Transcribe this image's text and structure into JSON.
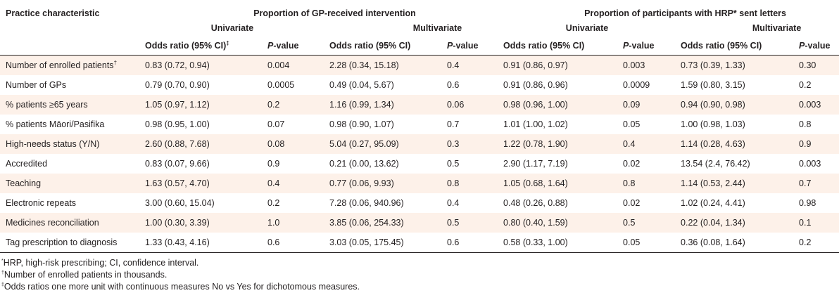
{
  "header": {
    "practice_characteristic": "Practice characteristic",
    "group1": "Proportion of GP-received intervention",
    "group2": "Proportion of participants with HRP* sent letters",
    "univariate": "Univariate",
    "multivariate": "Multivariate",
    "or_label": "Odds ratio (95% CI)",
    "or_dagger": "‡",
    "p_label_italic": "P",
    "p_label_rest": "-value"
  },
  "rows": [
    {
      "label": "Number of enrolled patients",
      "sup": "†",
      "gp_uni_or": "0.83 (0.72, 0.94)",
      "gp_uni_p": "0.004",
      "gp_multi_or": "2.28 (0.34, 15.18)",
      "gp_multi_p": "0.4",
      "hrp_uni_or": "0.91 (0.86, 0.97)",
      "hrp_uni_p": "0.003",
      "hrp_multi_or": "0.73 (0.39, 1.33)",
      "hrp_multi_p": "0.30"
    },
    {
      "label": "Number of GPs",
      "sup": "",
      "gp_uni_or": "0.79 (0.70, 0.90)",
      "gp_uni_p": "0.0005",
      "gp_multi_or": "0.49 (0.04, 5.67)",
      "gp_multi_p": "0.6",
      "hrp_uni_or": "0.91 (0.86, 0.96)",
      "hrp_uni_p": "0.0009",
      "hrp_multi_or": "1.59 (0.80, 3.15)",
      "hrp_multi_p": "0.2"
    },
    {
      "label": "% patients ≥65 years",
      "sup": "",
      "gp_uni_or": "1.05 (0.97, 1.12)",
      "gp_uni_p": "0.2",
      "gp_multi_or": "1.16 (0.99, 1.34)",
      "gp_multi_p": "0.06",
      "hrp_uni_or": "0.98 (0.96, 1.00)",
      "hrp_uni_p": "0.09",
      "hrp_multi_or": "0.94 (0.90, 0.98)",
      "hrp_multi_p": "0.003"
    },
    {
      "label": "% patients Māori/Pasifika",
      "sup": "",
      "gp_uni_or": "0.98 (0.95, 1.00)",
      "gp_uni_p": "0.07",
      "gp_multi_or": "0.98 (0.90, 1.07)",
      "gp_multi_p": "0.7",
      "hrp_uni_or": "1.01 (1.00, 1.02)",
      "hrp_uni_p": "0.05",
      "hrp_multi_or": "1.00 (0.98, 1.03)",
      "hrp_multi_p": "0.8"
    },
    {
      "label": "High-needs status (Y/N)",
      "sup": "",
      "gp_uni_or": "2.60 (0.88, 7.68)",
      "gp_uni_p": "0.08",
      "gp_multi_or": "5.04 (0.27, 95.09)",
      "gp_multi_p": "0.3",
      "hrp_uni_or": "1.22 (0.78, 1.90)",
      "hrp_uni_p": "0.4",
      "hrp_multi_or": "1.14 (0.28, 4.63)",
      "hrp_multi_p": "0.9"
    },
    {
      "label": "Accredited",
      "sup": "",
      "gp_uni_or": "0.83 (0.07, 9.66)",
      "gp_uni_p": "0.9",
      "gp_multi_or": "0.21 (0.00, 13.62)",
      "gp_multi_p": "0.5",
      "hrp_uni_or": "2.90 (1.17, 7.19)",
      "hrp_uni_p": "0.02",
      "hrp_multi_or": "13.54 (2.4, 76.42)",
      "hrp_multi_p": "0.003"
    },
    {
      "label": "Teaching",
      "sup": "",
      "gp_uni_or": "1.63 (0.57, 4.70)",
      "gp_uni_p": "0.4",
      "gp_multi_or": "0.77 (0.06, 9.93)",
      "gp_multi_p": "0.8",
      "hrp_uni_or": "1.05 (0.68, 1.64)",
      "hrp_uni_p": "0.8",
      "hrp_multi_or": "1.14 (0.53, 2.44)",
      "hrp_multi_p": "0.7"
    },
    {
      "label": "Electronic repeats",
      "sup": "",
      "gp_uni_or": "3.00 (0.60, 15.04)",
      "gp_uni_p": "0.2",
      "gp_multi_or": "7.28 (0.06, 940.96)",
      "gp_multi_p": "0.4",
      "hrp_uni_or": "0.48 (0.26, 0.88)",
      "hrp_uni_p": "0.02",
      "hrp_multi_or": "1.02 (0.24, 4.41)",
      "hrp_multi_p": "0.98"
    },
    {
      "label": "Medicines reconciliation",
      "sup": "",
      "gp_uni_or": "1.00 (0.30, 3.39)",
      "gp_uni_p": "1.0",
      "gp_multi_or": "3.85 (0.06, 254.33)",
      "gp_multi_p": "0.5",
      "hrp_uni_or": "0.80 (0.40, 1.59)",
      "hrp_uni_p": "0.5",
      "hrp_multi_or": "0.22 (0.04, 1.34)",
      "hrp_multi_p": "0.1"
    },
    {
      "label": "Tag prescription to diagnosis",
      "sup": "",
      "gp_uni_or": "1.33 (0.43, 4.16)",
      "gp_uni_p": "0.6",
      "gp_multi_or": "3.03 (0.05, 175.45)",
      "gp_multi_p": "0.6",
      "hrp_uni_or": "0.58 (0.33, 1.00)",
      "hrp_uni_p": "0.05",
      "hrp_multi_or": "0.36 (0.08, 1.64)",
      "hrp_multi_p": "0.2"
    }
  ],
  "footnotes": [
    {
      "mark": "*",
      "text": "HRP, high-risk prescribing; CI, confidence interval."
    },
    {
      "mark": "†",
      "text": "Number of enrolled patients in thousands."
    },
    {
      "mark": "‡",
      "text": "Odds ratios one more unit with continuous measures No vs Yes for dichotomous measures."
    }
  ],
  "colors": {
    "shade": "#fdf1e9",
    "text": "#231f20"
  }
}
